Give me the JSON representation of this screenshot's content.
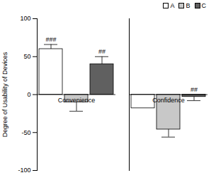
{
  "chart_data": {
    "type": "bar",
    "ylabel": "Degree of Usability of Devices",
    "categories": [
      "Convenience",
      "Confidence"
    ],
    "series": [
      {
        "name": "A",
        "color": "#ffffff",
        "values": [
          60,
          -18
        ],
        "errors": [
          6,
          0
        ],
        "annotations": [
          "###",
          null
        ]
      },
      {
        "name": "B",
        "color": "#c8c8c8",
        "values": [
          -10,
          -46
        ],
        "errors": [
          12,
          10
        ],
        "annotations": [
          null,
          null
        ]
      },
      {
        "name": "C",
        "color": "#606060",
        "values": [
          40,
          -3
        ],
        "errors": [
          10,
          5
        ],
        "annotations": [
          "##",
          "##"
        ]
      }
    ],
    "ylim": [
      -100,
      100
    ],
    "yticks": [
      -100,
      -50,
      0,
      50,
      100
    ],
    "legend": "top-right",
    "grid": false
  }
}
